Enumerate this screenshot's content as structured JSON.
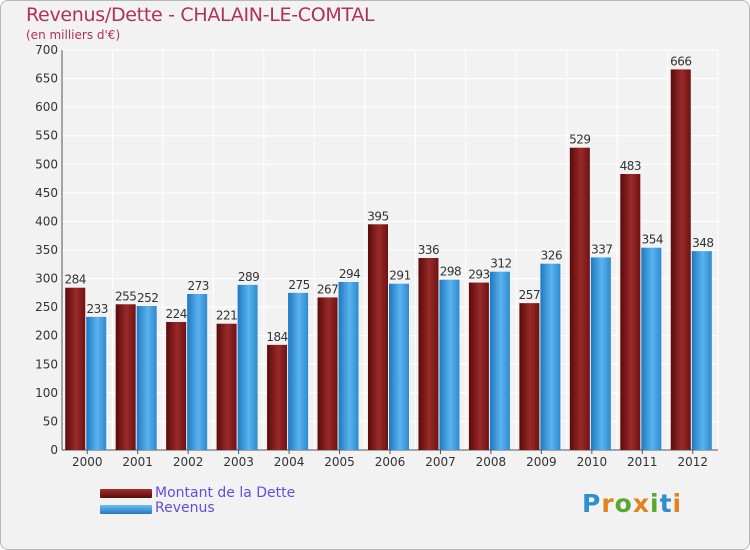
{
  "chart_data": {
    "type": "bar",
    "title": "Revenus/Dette - CHALAIN-LE-COMTAL",
    "subtitle": "(en milliers d'€)",
    "categories": [
      "2000",
      "2001",
      "2002",
      "2003",
      "2004",
      "2005",
      "2006",
      "2007",
      "2008",
      "2009",
      "2010",
      "2011",
      "2012"
    ],
    "series": [
      {
        "name": "Montant de la Dette",
        "color": "#8b1a1a",
        "values": [
          284,
          255,
          224,
          221,
          184,
          267,
          395,
          336,
          293,
          257,
          529,
          483,
          666
        ]
      },
      {
        "name": "Revenus",
        "color": "#3a9be0",
        "values": [
          233,
          252,
          273,
          289,
          275,
          294,
          291,
          298,
          312,
          326,
          337,
          354,
          348
        ]
      }
    ],
    "ylim": [
      0,
      700
    ],
    "yticks": [
      0,
      50,
      100,
      150,
      200,
      250,
      300,
      350,
      400,
      450,
      500,
      550,
      600,
      650,
      700
    ],
    "grid": true,
    "legend_position": "bottom-left",
    "data_labels": true
  },
  "logo": {
    "text": "Proxiti",
    "letter_colors": [
      "#2e8fcf",
      "#e0841e",
      "#58a832",
      "#e0841e",
      "#58a832",
      "#2e8fcf",
      "#e0841e"
    ]
  }
}
